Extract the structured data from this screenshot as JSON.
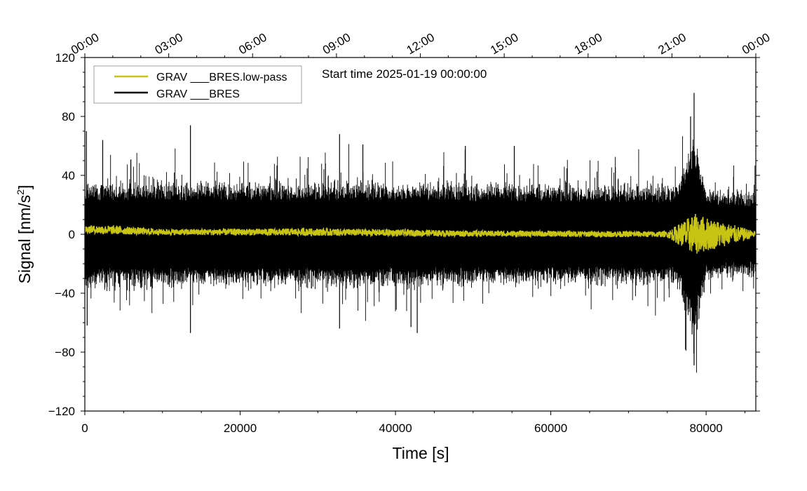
{
  "chart_data": {
    "type": "line",
    "title": "",
    "annotation": "Start time 2025-01-19 00:00:00",
    "xlabel": "Time [s]",
    "ylabel": "Signal [nm/s",
    "ylabel_sup": "2",
    "ylabel_end": "]",
    "xlim": [
      0,
      86400
    ],
    "ylim": [
      -120,
      120
    ],
    "x_ticks": [
      0,
      20000,
      40000,
      60000,
      80000
    ],
    "x_tick_labels": [
      "0",
      "20000",
      "40000",
      "60000",
      "80000"
    ],
    "y_ticks": [
      -120,
      -80,
      -40,
      0,
      40,
      80,
      120
    ],
    "y_tick_labels": [
      "−120",
      "−80",
      "−40",
      "0",
      "40",
      "80",
      "120"
    ],
    "top_axis_time_ticks": [
      0,
      10800,
      21600,
      32400,
      43200,
      54000,
      64800,
      75600,
      86400
    ],
    "top_axis_time_labels": [
      "00:00",
      "03:00",
      "06:00",
      "09:00",
      "12:00",
      "15:00",
      "18:00",
      "21:00",
      "00:00"
    ],
    "legend_position": "top-left",
    "series": [
      {
        "name": "GRAV ___BRES.low-pass",
        "color": "#c8c414",
        "description": "low-pass filtered gravity residual, amplitude about ±3 nm/s², offset ~+3 at start trending to ~0, burst to ±15 near 78500 s",
        "envelope_points": [
          {
            "x": 0,
            "center": 3.5,
            "halfwidth": 2.5
          },
          {
            "x": 3000,
            "center": 3,
            "halfwidth": 3
          },
          {
            "x": 10000,
            "center": 1.5,
            "halfwidth": 2
          },
          {
            "x": 30000,
            "center": 1.5,
            "halfwidth": 2.5
          },
          {
            "x": 50000,
            "center": 0.5,
            "halfwidth": 2
          },
          {
            "x": 75000,
            "center": 0,
            "halfwidth": 2
          },
          {
            "x": 78500,
            "center": 0,
            "halfwidth": 14
          },
          {
            "x": 86400,
            "center": 0,
            "halfwidth": 2
          }
        ]
      },
      {
        "name": "GRAV ___BRES",
        "color": "#000000",
        "description": "raw gravity residual, dense noise band of about ±30 nm/s² with spikes to ±65 and an event burst near 78500 s reaching +96 / -89",
        "envelope_points": [
          {
            "x": 0,
            "center": 0,
            "halfwidth": 30
          },
          {
            "x": 40000,
            "center": 0,
            "halfwidth": 30
          },
          {
            "x": 76000,
            "center": 0,
            "halfwidth": 28
          },
          {
            "x": 78500,
            "center": 0,
            "halfwidth": 60
          },
          {
            "x": 80000,
            "center": 0,
            "halfwidth": 26
          },
          {
            "x": 86400,
            "center": 0,
            "halfwidth": 24
          }
        ],
        "spikes": [
          {
            "x": 200,
            "value": 70
          },
          {
            "x": 300,
            "value": -62
          },
          {
            "x": 2300,
            "value": 64
          },
          {
            "x": 13600,
            "value": 74
          },
          {
            "x": 13600,
            "value": -67
          },
          {
            "x": 32800,
            "value": 68
          },
          {
            "x": 32800,
            "value": -64
          },
          {
            "x": 35800,
            "value": 61
          },
          {
            "x": 42000,
            "value": -63
          },
          {
            "x": 42800,
            "value": -67
          },
          {
            "x": 49000,
            "value": 60
          },
          {
            "x": 55300,
            "value": 60
          },
          {
            "x": 78000,
            "value": 80
          },
          {
            "x": 78450,
            "value": 96
          },
          {
            "x": 78450,
            "value": -89
          },
          {
            "x": 78200,
            "value": -68
          }
        ]
      }
    ]
  }
}
